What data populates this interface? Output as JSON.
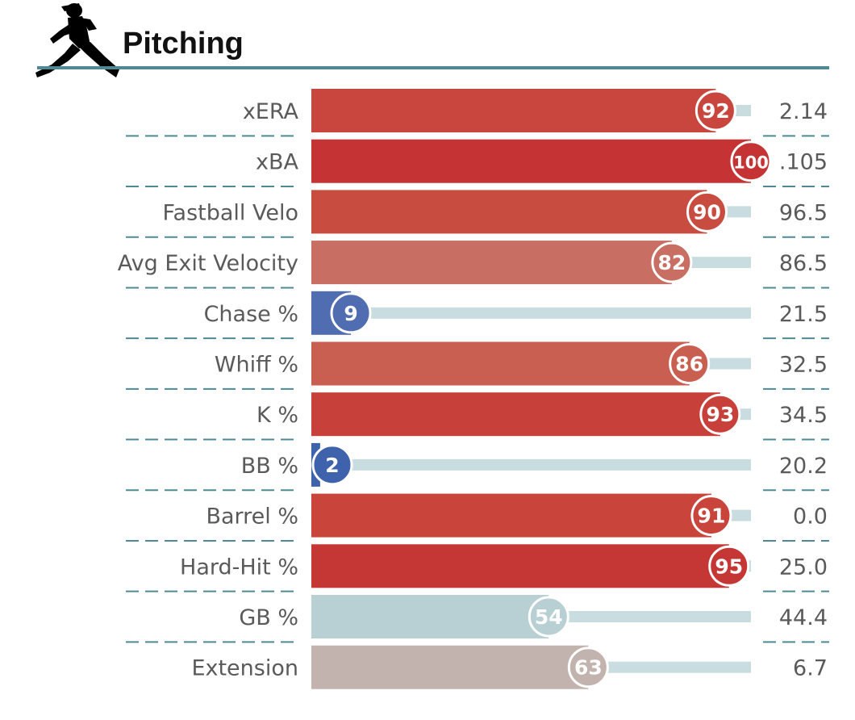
{
  "header": {
    "title": "Pitching",
    "icon": "pitcher-silhouette-icon",
    "rule_color": "#4e8a96"
  },
  "chart_data": {
    "type": "bar",
    "title": "Pitching",
    "x_metric": "percentile rank",
    "xlim": [
      0,
      100
    ],
    "gridlines": [
      10,
      50,
      90
    ],
    "categories": [
      "xERA",
      "xBA",
      "Fastball Velo",
      "Avg Exit Velocity",
      "Chase %",
      "Whiff %",
      "K %",
      "BB %",
      "Barrel %",
      "Hard-Hit %",
      "GB %",
      "Extension"
    ],
    "percentiles": [
      92,
      100,
      90,
      82,
      9,
      86,
      93,
      2,
      91,
      95,
      54,
      63
    ],
    "stat_values": [
      "2.14",
      ".105",
      "96.5",
      "86.5",
      "21.5",
      "32.5",
      "34.5",
      "20.2",
      "0.0",
      "25.0",
      "44.4",
      "6.7"
    ],
    "colors": [
      "#c9463e",
      "#c53334",
      "#c94c40",
      "#c86e62",
      "#4f6db0",
      "#c95f50",
      "#c8403a",
      "#3e62ab",
      "#c9453c",
      "#c53735",
      "#b8cfd3",
      "#c3b3ae"
    ],
    "track_color": "#c9dcdf",
    "divider_color": "#4e8a96"
  }
}
